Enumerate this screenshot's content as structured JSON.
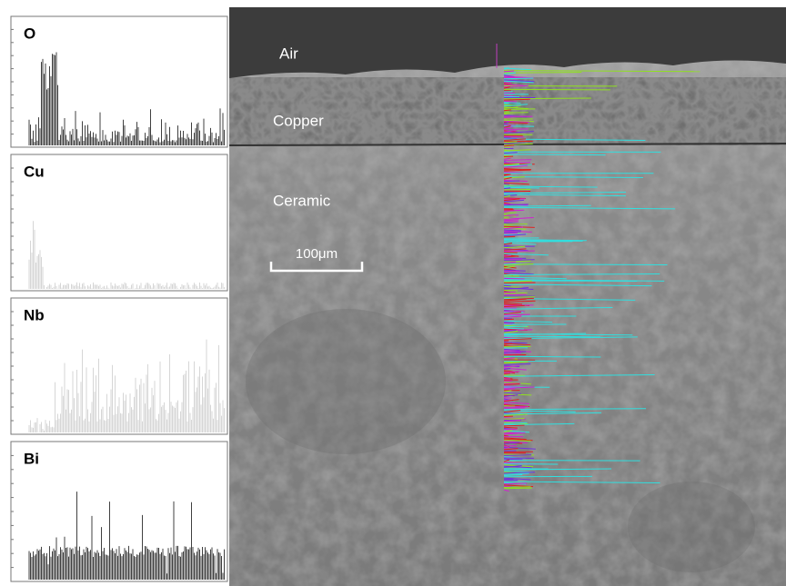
{
  "panels": [
    {
      "label": "O"
    },
    {
      "label": "Cu"
    },
    {
      "label": "Nb"
    },
    {
      "label": "Bi"
    }
  ],
  "image": {
    "labels": [
      "Air",
      "Copper",
      "Ceramic"
    ],
    "scale_bar": "100μm"
  }
}
